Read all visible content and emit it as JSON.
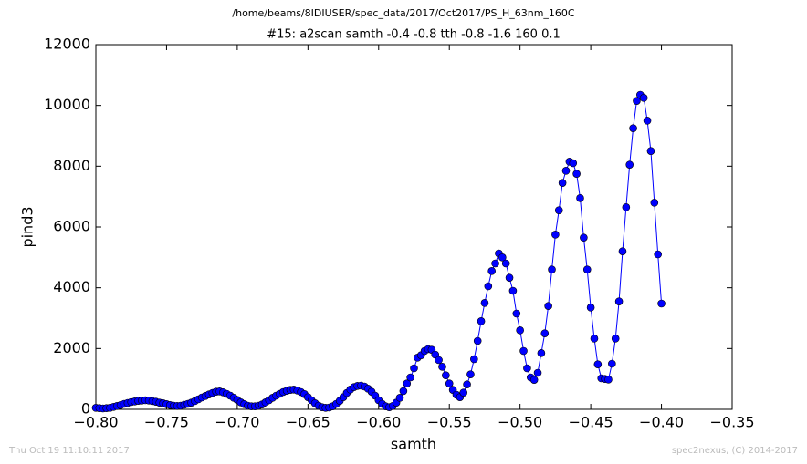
{
  "chart_data": {
    "type": "line",
    "title": "/home/beams/8IDIUSER/spec_data/2017/Oct2017/PS_H_63nm_160C",
    "subtitle": "#15: a2scan  samth -0.4 -0.8  tth -0.8 -1.6  160 0.1",
    "x_label": "samth",
    "y_label": "pind3",
    "x": [
      -0.8,
      -0.7975,
      -0.795,
      -0.7925,
      -0.79,
      -0.7875,
      -0.785,
      -0.7825,
      -0.78,
      -0.7775,
      -0.775,
      -0.7725,
      -0.77,
      -0.7675,
      -0.765,
      -0.7625,
      -0.76,
      -0.7575,
      -0.755,
      -0.7525,
      -0.75,
      -0.7475,
      -0.745,
      -0.7425,
      -0.74,
      -0.7375,
      -0.735,
      -0.7325,
      -0.73,
      -0.7275,
      -0.725,
      -0.7225,
      -0.72,
      -0.7175,
      -0.715,
      -0.7125,
      -0.71,
      -0.7075,
      -0.705,
      -0.7025,
      -0.7,
      -0.6975,
      -0.695,
      -0.6925,
      -0.69,
      -0.6875,
      -0.685,
      -0.6825,
      -0.68,
      -0.6775,
      -0.675,
      -0.6725,
      -0.67,
      -0.6675,
      -0.665,
      -0.6625,
      -0.66,
      -0.6575,
      -0.655,
      -0.6525,
      -0.65,
      -0.6475,
      -0.645,
      -0.6425,
      -0.64,
      -0.6375,
      -0.635,
      -0.6325,
      -0.63,
      -0.6275,
      -0.625,
      -0.6225,
      -0.62,
      -0.6175,
      -0.615,
      -0.6125,
      -0.61,
      -0.6075,
      -0.605,
      -0.6025,
      -0.6,
      -0.5975,
      -0.595,
      -0.5925,
      -0.59,
      -0.5875,
      -0.585,
      -0.5825,
      -0.58,
      -0.5775,
      -0.575,
      -0.5725,
      -0.57,
      -0.5675,
      -0.565,
      -0.5625,
      -0.56,
      -0.5575,
      -0.555,
      -0.5525,
      -0.55,
      -0.5475,
      -0.545,
      -0.5425,
      -0.54,
      -0.5375,
      -0.535,
      -0.5325,
      -0.53,
      -0.5275,
      -0.525,
      -0.5225,
      -0.52,
      -0.5175,
      -0.515,
      -0.5125,
      -0.51,
      -0.5075,
      -0.505,
      -0.5025,
      -0.5,
      -0.4975,
      -0.495,
      -0.4925,
      -0.49,
      -0.4875,
      -0.485,
      -0.4825,
      -0.48,
      -0.4775,
      -0.475,
      -0.4725,
      -0.47,
      -0.4675,
      -0.465,
      -0.4625,
      -0.46,
      -0.4575,
      -0.455,
      -0.4525,
      -0.45,
      -0.4475,
      -0.445,
      -0.4425,
      -0.44,
      -0.4375,
      -0.435,
      -0.4325,
      -0.43,
      -0.4275,
      -0.425,
      -0.4225,
      -0.42,
      -0.4175,
      -0.415,
      -0.4125,
      -0.41,
      -0.4075,
      -0.405,
      -0.4025,
      -0.4
    ],
    "series": [
      {
        "color": "#0000ff",
        "values": [
          50,
          40,
          30,
          40,
          50,
          80,
          110,
          140,
          180,
          210,
          240,
          260,
          280,
          290,
          300,
          290,
          270,
          250,
          220,
          200,
          170,
          140,
          120,
          110,
          120,
          150,
          180,
          220,
          270,
          330,
          390,
          440,
          490,
          540,
          580,
          590,
          560,
          510,
          450,
          380,
          310,
          230,
          170,
          120,
          100,
          100,
          120,
          160,
          230,
          300,
          380,
          450,
          510,
          570,
          610,
          640,
          650,
          620,
          570,
          500,
          400,
          300,
          200,
          120,
          70,
          50,
          60,
          100,
          180,
          280,
          400,
          540,
          650,
          730,
          770,
          780,
          750,
          680,
          580,
          450,
          300,
          180,
          100,
          70,
          110,
          220,
          380,
          600,
          850,
          1050,
          1350,
          1700,
          1780,
          1920,
          1980,
          1960,
          1800,
          1620,
          1400,
          1120,
          850,
          640,
          480,
          400,
          550,
          820,
          1150,
          1650,
          2250,
          2900,
          3500,
          4050,
          4550,
          4800,
          5130,
          5000,
          4800,
          4330,
          3900,
          3150,
          2600,
          1920,
          1350,
          1050,
          970,
          1200,
          1850,
          2500,
          3400,
          4600,
          5750,
          6550,
          7450,
          7850,
          8150,
          8100,
          7750,
          6950,
          5650,
          4600,
          3350,
          2330,
          1480,
          1020,
          1000,
          980,
          1500,
          2330,
          3550,
          5200,
          6650,
          8050,
          9250,
          10150,
          10350,
          10250,
          9500,
          8500,
          6800,
          5100,
          3480
        ]
      }
    ],
    "xlim": [
      -0.8,
      -0.35
    ],
    "xticks": [
      {
        "value": -0.8,
        "label": "−0.80"
      },
      {
        "value": -0.75,
        "label": "−0.75"
      },
      {
        "value": -0.7,
        "label": "−0.70"
      },
      {
        "value": -0.65,
        "label": "−0.65"
      },
      {
        "value": -0.6,
        "label": "−0.60"
      },
      {
        "value": -0.55,
        "label": "−0.55"
      },
      {
        "value": -0.5,
        "label": "−0.50"
      },
      {
        "value": -0.45,
        "label": "−0.45"
      },
      {
        "value": -0.4,
        "label": "−0.40"
      },
      {
        "value": -0.35,
        "label": "−0.35"
      }
    ],
    "ylim": [
      0,
      12000
    ],
    "yticks": [
      0,
      2000,
      4000,
      6000,
      8000,
      10000,
      12000
    ],
    "grid": false
  },
  "footer": {
    "left": "Thu Oct 19 11:10:11 2017",
    "right": "spec2nexus, (C) 2014-2017"
  }
}
